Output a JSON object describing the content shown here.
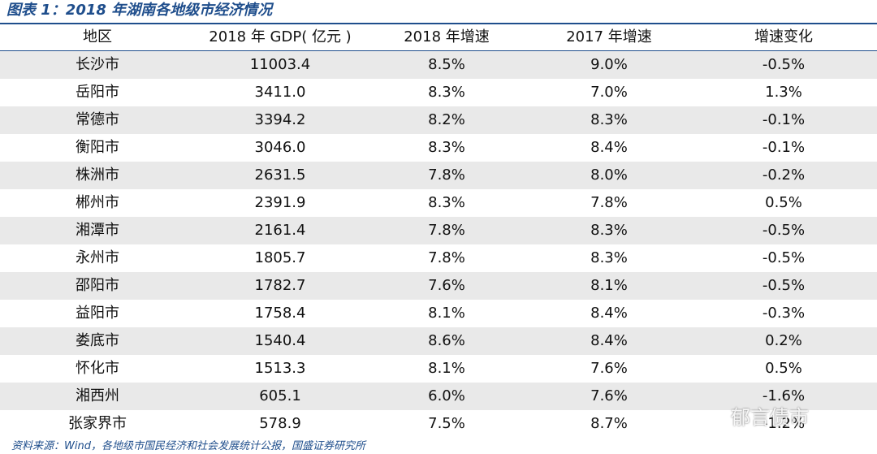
{
  "title": "图表 1：2018 年湖南各地级市经济情况",
  "table": {
    "header": [
      "地区",
      "2018 年 GDP( 亿元 )",
      "2018 年增速",
      "2017 年增速",
      "增速变化"
    ],
    "rows": [
      [
        "长沙市",
        "11003.4",
        "8.5%",
        "9.0%",
        "-0.5%"
      ],
      [
        "岳阳市",
        "3411.0",
        "8.3%",
        "7.0%",
        "1.3%"
      ],
      [
        "常德市",
        "3394.2",
        "8.2%",
        "8.3%",
        "-0.1%"
      ],
      [
        "衡阳市",
        "3046.0",
        "8.3%",
        "8.4%",
        "-0.1%"
      ],
      [
        "株洲市",
        "2631.5",
        "7.8%",
        "8.0%",
        "-0.2%"
      ],
      [
        "郴州市",
        "2391.9",
        "8.3%",
        "7.8%",
        "0.5%"
      ],
      [
        "湘潭市",
        "2161.4",
        "7.8%",
        "8.3%",
        "-0.5%"
      ],
      [
        "永州市",
        "1805.7",
        "7.8%",
        "8.3%",
        "-0.5%"
      ],
      [
        "邵阳市",
        "1782.7",
        "7.6%",
        "8.1%",
        "-0.5%"
      ],
      [
        "益阳市",
        "1758.4",
        "8.1%",
        "8.4%",
        "-0.3%"
      ],
      [
        "娄底市",
        "1540.4",
        "8.6%",
        "8.4%",
        "0.2%"
      ],
      [
        "怀化市",
        "1513.3",
        "8.1%",
        "7.6%",
        "0.5%"
      ],
      [
        "湘西州",
        "605.1",
        "6.0%",
        "7.6%",
        "-1.6%"
      ],
      [
        "张家界市",
        "578.9",
        "7.5%",
        "8.7%",
        "-1.2%"
      ]
    ]
  },
  "source": "资料来源：Wind，各地级市国民经济和社会发展统计公报，国盛证券研究所",
  "watermark": "郁言债市"
}
